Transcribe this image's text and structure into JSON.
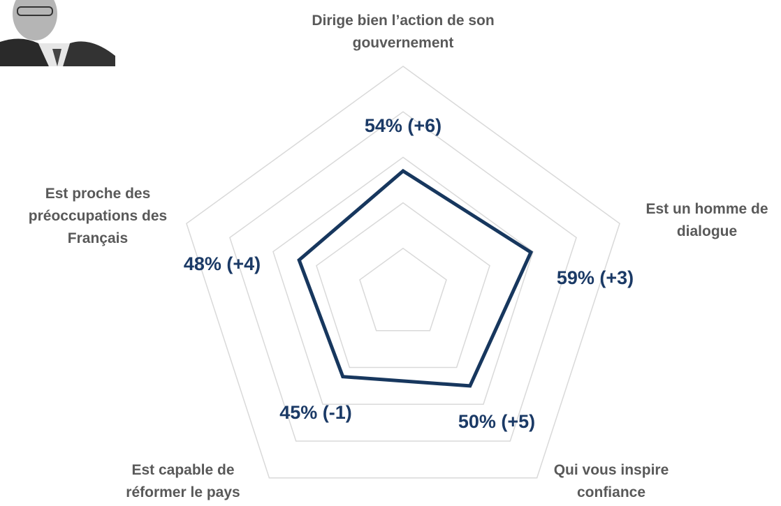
{
  "chart_data": {
    "type": "radar",
    "categories": [
      "Dirige bien l’action de son gouvernement",
      "Est un homme de dialogue",
      "Qui vous inspire confiance",
      "Est capable de réformer le pays",
      "Est proche des préoccupations des Français"
    ],
    "values": [
      54,
      59,
      50,
      45,
      48
    ],
    "value_labels": [
      "54% (+6)",
      "59% (+3)",
      "50% (+5)",
      "45% (-1)",
      "48% (+4)"
    ],
    "color": "#17375e",
    "rlim": [
      0,
      100
    ],
    "rticks": [
      20,
      40,
      60,
      80,
      100
    ],
    "grid": true
  }
}
